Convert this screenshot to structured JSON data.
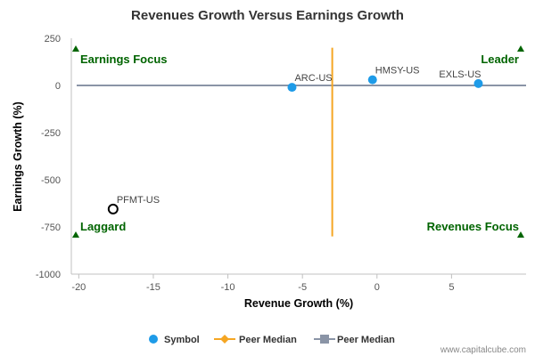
{
  "chart_data": {
    "type": "scatter",
    "title": "Revenues Growth Versus Earnings Growth",
    "xlabel": "Revenue Growth (%)",
    "ylabel": "Earnings Growth (%)",
    "xlim": [
      -20.5,
      10
    ],
    "ylim": [
      -1000,
      250
    ],
    "x_ticks": [
      -20,
      -15,
      -10,
      -5,
      0,
      5
    ],
    "x_tick_labels": [
      "-20",
      "-15",
      "-10",
      "-5",
      "0",
      "5"
    ],
    "y_ticks": [
      250,
      0,
      -250,
      -500,
      -750,
      -1000
    ],
    "y_tick_labels": [
      "250",
      "0",
      "-250",
      "-500",
      "-750",
      "-1000"
    ],
    "points": [
      {
        "label": "ARC-US",
        "x": -5.7,
        "y": -10,
        "style": "filled"
      },
      {
        "label": "HMSY-US",
        "x": -0.3,
        "y": 30,
        "style": "filled"
      },
      {
        "label": "EXLS-US",
        "x": 6.8,
        "y": 10,
        "style": "filled"
      },
      {
        "label": "PFMT-US",
        "x": -17.7,
        "y": -655,
        "style": "hollow"
      }
    ],
    "peer_median_x": -3.0,
    "peer_median_x_range": [
      -800,
      200
    ],
    "peer_median_y": 0,
    "quadrants": {
      "top_left": "Earnings Focus",
      "top_right": "Leader",
      "bottom_left": "Laggard",
      "bottom_right": "Revenues Focus"
    },
    "legend": [
      {
        "name": "Symbol",
        "marker": "circle",
        "color": "#1e9be8"
      },
      {
        "name": "Peer Median",
        "marker": "diamond",
        "color": "#f5a623"
      },
      {
        "name": "Peer Median",
        "marker": "square",
        "color": "#8a94a6"
      }
    ],
    "colors": {
      "point": "#1e9be8",
      "vertical_median": "#f5a623",
      "horizontal_median": "#8a94a6",
      "quadrant": "#006400",
      "axis": "#c0c0c0"
    }
  },
  "credit": "www.capitalcube.com"
}
